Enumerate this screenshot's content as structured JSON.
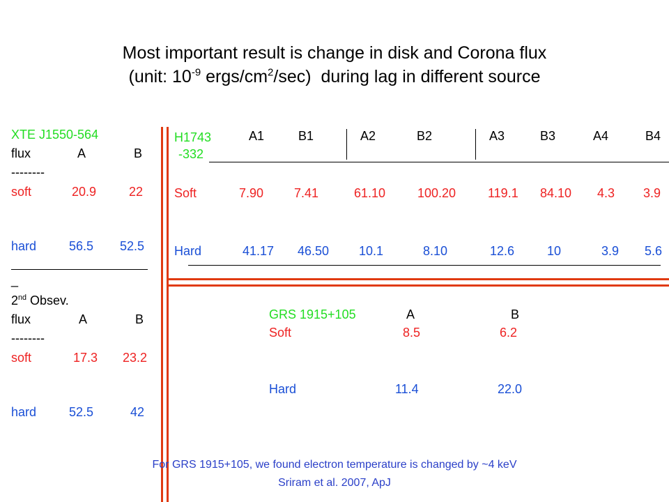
{
  "title": {
    "line1": "Most important result is change in disk and Corona flux",
    "line2_pre": "(unit: 10",
    "line2_exp1": "-9",
    "line2_mid": " ergs/cm",
    "line2_exp2": "2",
    "line2_post": "/sec)  during lag in different source"
  },
  "xte": {
    "name": "XTE J1550-564",
    "flux_label": "flux",
    "col_a": "A",
    "col_b": "B",
    "dashes": "--------",
    "soft_label": "soft",
    "soft_a": "20.9",
    "soft_b": "22",
    "hard_label": "hard",
    "hard_a": "56.5",
    "hard_b": "52.5",
    "stray_dash": "_",
    "second_obs_num": "2",
    "second_obs_sup": "nd",
    "second_obs_text": " Obsev.",
    "flux_label2": "flux",
    "col_a2": "A",
    "col_b2": "B",
    "dashes2": "--------",
    "soft_label2": "soft",
    "soft_a2": "17.3",
    "soft_b2": "23.2",
    "hard_label2": "hard",
    "hard_a2": "52.5",
    "hard_b2": "42"
  },
  "h1743": {
    "name_line1": "H1743",
    "name_line2": "-332",
    "columns": [
      "A1",
      "B1",
      "A2",
      "B2",
      "A3",
      "B3",
      "A4",
      "B4"
    ],
    "soft_label": "Soft",
    "soft_values": [
      "7.90",
      "7.41",
      "61.10",
      "100.20",
      "119.1",
      "84.10",
      "4.3",
      "3.9"
    ],
    "hard_label": "Hard",
    "hard_values": [
      "41.17",
      "46.50",
      "10.1",
      "8.10",
      "12.6",
      "10",
      "3.9",
      "5.6"
    ]
  },
  "grs": {
    "name": "GRS 1915+105",
    "col_a": "A",
    "col_b": "B",
    "soft_label": "Soft",
    "soft_a": "8.5",
    "soft_b": "6.2",
    "hard_label": "Hard",
    "hard_a": "11.4",
    "hard_b": "22.0"
  },
  "footer": {
    "line1": "For GRS 1915+105, we found electron temperature is changed by ~4 keV",
    "line2": "Sriram et al. 2007, ApJ"
  },
  "colors": {
    "source_name": "#22dd22",
    "soft": "#ee2222",
    "hard": "#1a4fd6",
    "divider": "#e03a10"
  }
}
